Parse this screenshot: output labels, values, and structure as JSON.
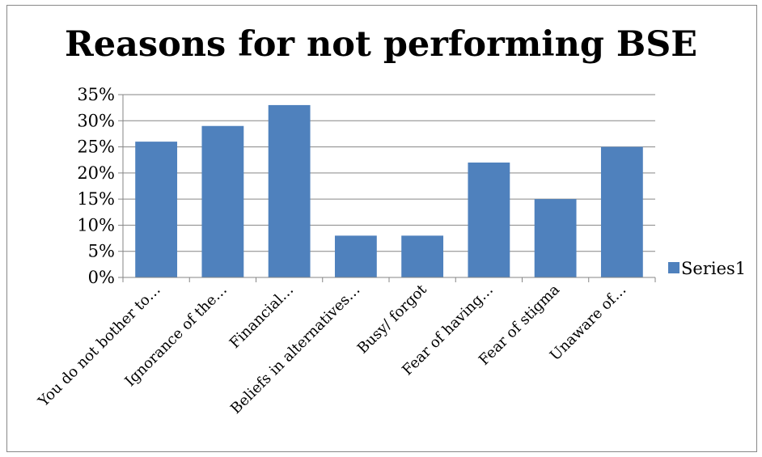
{
  "chart_data": {
    "type": "bar",
    "title": "Reasons for not performing BSE",
    "categories": [
      "You do not bother to…",
      "Ignorance of the…",
      "Financial…",
      "Beliefs in alternatives…",
      "Busy/ forgot",
      "Fear of having…",
      "Fear of stigma",
      "Unaware of…"
    ],
    "series": [
      {
        "name": "Series1",
        "values": [
          0.26,
          0.29,
          0.33,
          0.08,
          0.08,
          0.22,
          0.15,
          0.25
        ]
      }
    ],
    "yticks": [
      "0%",
      "5%",
      "10%",
      "15%",
      "20%",
      "25%",
      "30%",
      "35%"
    ],
    "ylim": [
      0,
      0.35
    ],
    "xlabel": "",
    "ylabel": "",
    "grid": true,
    "legend_position": "right",
    "colors": {
      "bar": "#4f81bd",
      "grid": "#868686",
      "axis": "#868686"
    }
  }
}
